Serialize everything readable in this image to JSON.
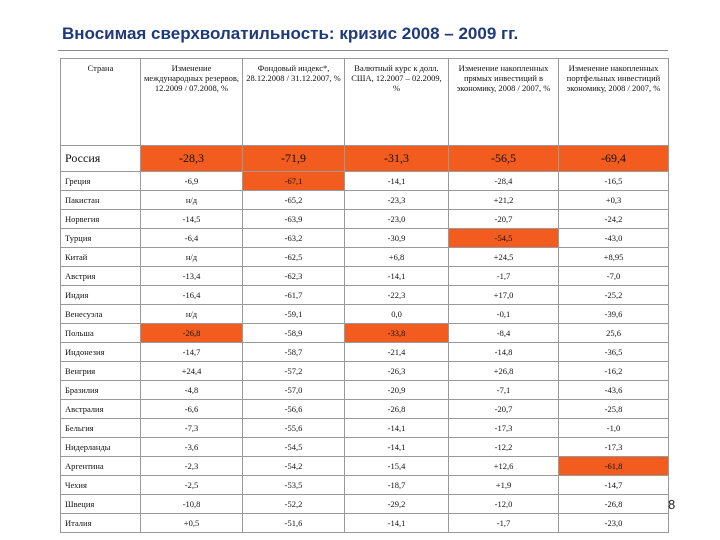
{
  "title": "Вносимая сверхволатильность: кризис 2008 – 2009 гг.",
  "page_number": "8",
  "highlight_color": "#f25c1f",
  "columns": [
    "Страна",
    "Изменение международных резервов, 12.2009 / 07.2008, %",
    "Фондовый индекс*, 28.12.2008 / 31.12.2007, %",
    "Валютный курс к долл. США, 12.2007 – 02.2009, %",
    "Изменение накопленных прямых инвестиций в экономику, 2008 / 2007, %",
    "Изменение накопленных портфельных инвестиций экономику, 2008 / 2007, %"
  ],
  "rows": [
    {
      "country": "Россия",
      "values": [
        "-28,3",
        "-71,9",
        "-31,3",
        "-56,5",
        "-69,4"
      ],
      "highlight": [
        true,
        true,
        true,
        true,
        true
      ]
    },
    {
      "country": "Греция",
      "values": [
        "-6,9",
        "-67,1",
        "-14,1",
        "-28,4",
        "-16,5"
      ],
      "highlight": [
        false,
        true,
        false,
        false,
        false
      ]
    },
    {
      "country": "Пакистан",
      "values": [
        "н/д",
        "-65,2",
        "-23,3",
        "+21,2",
        "+0,3"
      ],
      "highlight": [
        false,
        false,
        false,
        false,
        false
      ]
    },
    {
      "country": "Норвегия",
      "values": [
        "-14,5",
        "-63,9",
        "-23,0",
        "-20,7",
        "-24,2"
      ],
      "highlight": [
        false,
        false,
        false,
        false,
        false
      ]
    },
    {
      "country": "Турция",
      "values": [
        "-6,4",
        "-63,2",
        "-30,9",
        "-54,5",
        "-43,0"
      ],
      "highlight": [
        false,
        false,
        false,
        true,
        false
      ]
    },
    {
      "country": "Китай",
      "values": [
        "н/д",
        "-62,5",
        "+6,8",
        "+24,5",
        "+8,95"
      ],
      "highlight": [
        false,
        false,
        false,
        false,
        false
      ]
    },
    {
      "country": "Австрия",
      "values": [
        "-13,4",
        "-62,3",
        "-14,1",
        "-1,7",
        "-7,0"
      ],
      "highlight": [
        false,
        false,
        false,
        false,
        false
      ]
    },
    {
      "country": "Индия",
      "values": [
        "-16,4",
        "-61,7",
        "-22,3",
        "+17,0",
        "-25,2"
      ],
      "highlight": [
        false,
        false,
        false,
        false,
        false
      ]
    },
    {
      "country": "Венесуэла",
      "values": [
        "н/д",
        "-59,1",
        "0,0",
        "-0,1",
        "-39,6"
      ],
      "highlight": [
        false,
        false,
        false,
        false,
        false
      ]
    },
    {
      "country": "Польша",
      "values": [
        "-26,8",
        "-58,9",
        "-33,8",
        "-8,4",
        "25,6"
      ],
      "highlight": [
        true,
        false,
        true,
        false,
        false
      ]
    },
    {
      "country": "Индонезия",
      "values": [
        "-14,7",
        "-58,7",
        "-21,4",
        "-14,8",
        "-36,5"
      ],
      "highlight": [
        false,
        false,
        false,
        false,
        false
      ]
    },
    {
      "country": "Венгрия",
      "values": [
        "+24,4",
        "-57,2",
        "-26,3",
        "+26,8",
        "-16,2"
      ],
      "highlight": [
        false,
        false,
        false,
        false,
        false
      ]
    },
    {
      "country": "Бразилия",
      "values": [
        "-4,8",
        "-57,0",
        "-20,9",
        "-7,1",
        "-43,6"
      ],
      "highlight": [
        false,
        false,
        false,
        false,
        false
      ]
    },
    {
      "country": "Австралия",
      "values": [
        "-6,6",
        "-56,6",
        "-26,8",
        "-20,7",
        "-25,8"
      ],
      "highlight": [
        false,
        false,
        false,
        false,
        false
      ]
    },
    {
      "country": "Бельгия",
      "values": [
        "-7,3",
        "-55,6",
        "-14,1",
        "-17,3",
        "-1,0"
      ],
      "highlight": [
        false,
        false,
        false,
        false,
        false
      ]
    },
    {
      "country": "Нидерланды",
      "values": [
        "-3,6",
        "-54,5",
        "-14,1",
        "-12,2",
        "-17,3"
      ],
      "highlight": [
        false,
        false,
        false,
        false,
        false
      ]
    },
    {
      "country": "Аргентина",
      "values": [
        "-2,3",
        "-54,2",
        "-15,4",
        "+12,6",
        "-61,8"
      ],
      "highlight": [
        false,
        false,
        false,
        false,
        true
      ]
    },
    {
      "country": "Чехия",
      "values": [
        "-2,5",
        "-53,5",
        "-18,7",
        "+1,9",
        "-14,7"
      ],
      "highlight": [
        false,
        false,
        false,
        false,
        false
      ]
    },
    {
      "country": "Швеция",
      "values": [
        "-10,8",
        "-52,2",
        "-29,2",
        "-12,0",
        "-26,8"
      ],
      "highlight": [
        false,
        false,
        false,
        false,
        false
      ]
    },
    {
      "country": "Италия",
      "values": [
        "+0,5",
        "-51,6",
        "-14,1",
        "-1,7",
        "-23,0"
      ],
      "highlight": [
        false,
        false,
        false,
        false,
        false
      ]
    }
  ]
}
